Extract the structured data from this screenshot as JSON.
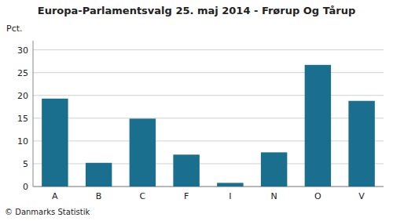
{
  "chart_data": {
    "type": "bar",
    "title": "Europa-Parlamentsvalg 25. maj 2014 - Frørup Og Tårup",
    "ylabel": "Pct.",
    "footnote": "© Danmarks Statistik",
    "categories": [
      "A",
      "B",
      "C",
      "F",
      "I",
      "N",
      "O",
      "V"
    ],
    "values": [
      19.3,
      5.2,
      14.9,
      7.0,
      0.8,
      7.5,
      26.7,
      18.8
    ],
    "color": "#1a6e8e",
    "ylim": [
      0,
      32
    ],
    "yticks": [
      0,
      5,
      10,
      15,
      20,
      25,
      30
    ],
    "grid": true
  }
}
